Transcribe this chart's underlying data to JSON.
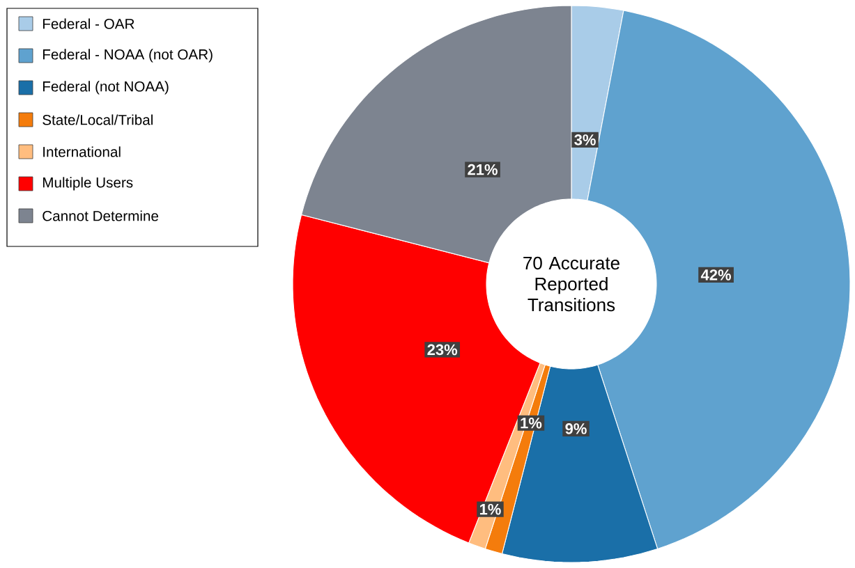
{
  "chart_data": {
    "type": "donut",
    "categories": [
      "Federal - OAR",
      "Federal - NOAA (not OAR)",
      "Federal (not NOAA)",
      "State/Local/Tribal",
      "International",
      "Multiple Users",
      "Cannot Determine"
    ],
    "values": [
      3,
      42,
      9,
      1,
      1,
      23,
      21
    ],
    "colors": [
      "#a9cce8",
      "#5fa2cf",
      "#1a6fa8",
      "#f47c0c",
      "#ffbd7f",
      "#ff0000",
      "#7d8490"
    ],
    "value_labels": [
      "3%",
      "42%",
      "9%",
      "1%",
      "1%",
      "23%",
      "21%"
    ],
    "annotations": [
      "70 Accurate Reported Transitions"
    ],
    "legend": "top left"
  }
}
